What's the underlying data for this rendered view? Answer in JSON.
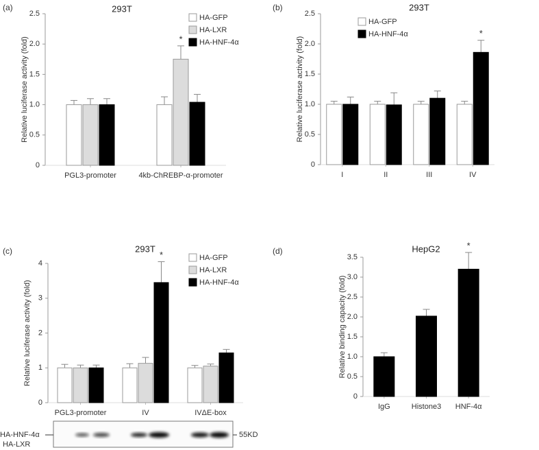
{
  "chart_data": [
    {
      "type": "bar",
      "panel_label": "(a)",
      "title": "293T",
      "y_label": "Relative luciferase activity (fold)",
      "categories": [
        "PGL3-promoter",
        "4kb-ChREBP-α-promoter"
      ],
      "series": [
        {
          "name": "HA-GFP",
          "color": "#ffffff",
          "values": [
            1.0,
            1.0
          ],
          "errors": [
            0.07,
            0.13
          ],
          "annotations": [
            null,
            null
          ]
        },
        {
          "name": "HA-LXR",
          "color": "#dcdcdc",
          "values": [
            1.0,
            1.75
          ],
          "errors": [
            0.1,
            0.22
          ],
          "annotations": [
            null,
            "*"
          ]
        },
        {
          "name": "HA-HNF-4α",
          "color": "#000000",
          "values": [
            1.0,
            1.04
          ],
          "errors": [
            0.1,
            0.13
          ],
          "annotations": [
            null,
            null
          ]
        }
      ],
      "ylim": [
        0,
        2.5
      ],
      "yticks": [
        0,
        0.5,
        {
          "value": 1,
          "label": "1.0"
        },
        1.5,
        {
          "value": 2,
          "label": "2.0"
        },
        2.5
      ]
    },
    {
      "type": "bar",
      "panel_label": "(b)",
      "title": "293T",
      "y_label": "Relative luciferase activity (fold)",
      "categories": [
        "I",
        "II",
        "III",
        "IV"
      ],
      "series": [
        {
          "name": "HA-GFP",
          "color": "#ffffff",
          "values": [
            1.0,
            1.0,
            1.0,
            1.0
          ],
          "errors": [
            0.05,
            0.05,
            0.05,
            0.05
          ],
          "annotations": [
            null,
            null,
            null,
            null
          ]
        },
        {
          "name": "HA-HNF-4α",
          "color": "#000000",
          "values": [
            1.0,
            0.99,
            1.1,
            1.86
          ],
          "errors": [
            0.12,
            0.2,
            0.12,
            0.2
          ],
          "annotations": [
            null,
            null,
            null,
            "*"
          ]
        }
      ],
      "ylim": [
        0,
        2.5
      ],
      "yticks": [
        0,
        0.5,
        {
          "value": 1,
          "label": "1.0"
        },
        1.5,
        {
          "value": 2,
          "label": "2.0"
        },
        2.5
      ]
    },
    {
      "type": "bar",
      "panel_label": "(c)",
      "title": "293T",
      "y_label": "Relative luciferase activity (fold)",
      "categories": [
        "PGL3-promoter",
        "IV",
        "IVΔE-box"
      ],
      "series": [
        {
          "name": "HA-GFP",
          "color": "#ffffff",
          "values": [
            1.0,
            1.0,
            1.0
          ],
          "errors": [
            0.1,
            0.12,
            0.07
          ],
          "annotations": [
            null,
            null,
            null
          ]
        },
        {
          "name": "HA-LXR",
          "color": "#dcdcdc",
          "values": [
            1.0,
            1.13,
            1.05
          ],
          "errors": [
            0.08,
            0.17,
            0.06
          ],
          "annotations": [
            null,
            null,
            null
          ]
        },
        {
          "name": "HA-HNF-4α",
          "color": "#000000",
          "values": [
            1.0,
            3.45,
            1.43
          ],
          "errors": [
            0.08,
            0.6,
            0.1
          ],
          "annotations": [
            null,
            "*",
            null
          ]
        }
      ],
      "ylim": [
        0,
        4
      ],
      "yticks": [
        0,
        1,
        2,
        3,
        4
      ],
      "blot": {
        "labels": [
          "HA-HNF-4α",
          "HA-LXR"
        ],
        "size_marker": "55KD"
      }
    },
    {
      "type": "bar",
      "panel_label": "(d)",
      "title": "HepG2",
      "y_label": "Relative binding capacity (fold)",
      "categories": [
        "IgG",
        "Histone3",
        "HNF-4α"
      ],
      "color": "#000000",
      "values": [
        1.0,
        2.02,
        3.2
      ],
      "errors": [
        0.1,
        0.17,
        0.42
      ],
      "annotations": [
        null,
        null,
        "*"
      ],
      "ylim": [
        0,
        3.5
      ],
      "yticks": [
        0,
        0.5,
        {
          "value": 1,
          "label": "1.0"
        },
        1.5,
        {
          "value": 2,
          "label": "2.0"
        },
        2.5,
        {
          "value": 3,
          "label": "3.0"
        },
        3.5
      ]
    }
  ]
}
